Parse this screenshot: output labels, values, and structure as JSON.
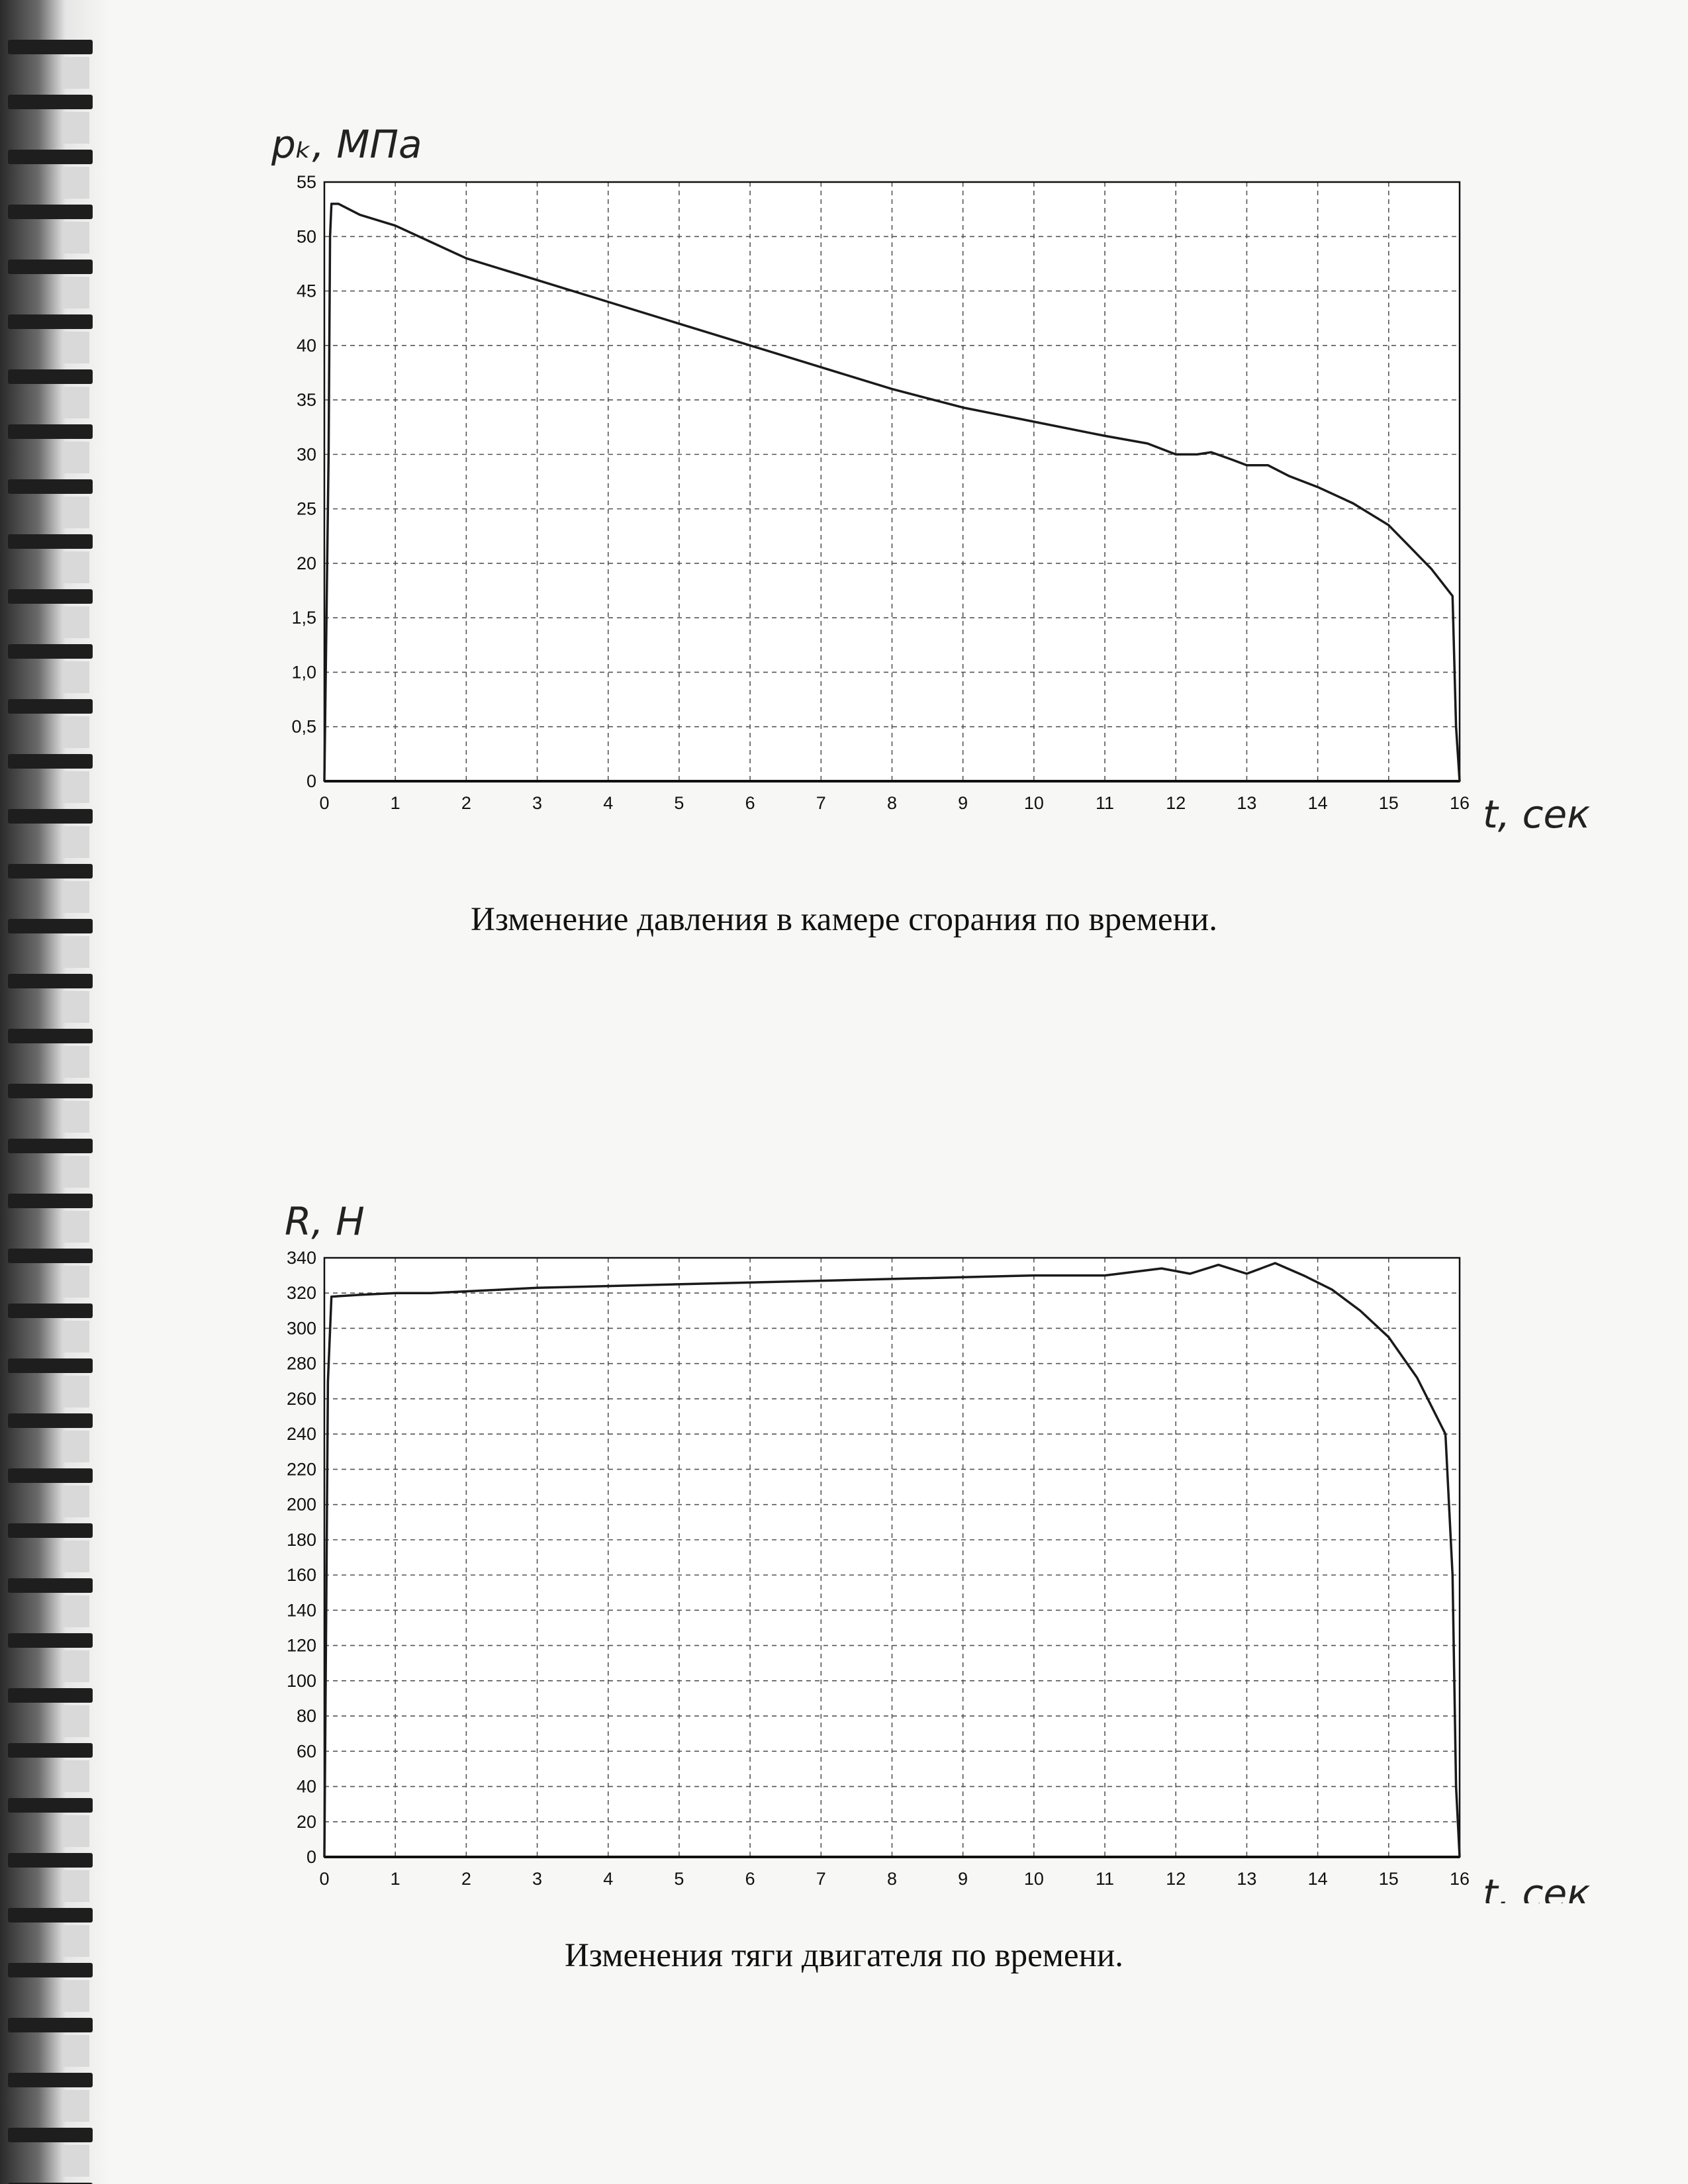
{
  "chart_data": [
    {
      "type": "line",
      "title": "",
      "caption": "Изменение давления в камере сгорания по времени.",
      "xlabel": "t, сек",
      "ylabel": "pₖ, МПа",
      "xlim": [
        0,
        16
      ],
      "ylim": [
        0,
        55
      ],
      "x_ticks": [
        "0",
        "1",
        "2",
        "3",
        "4",
        "5",
        "6",
        "7",
        "8",
        "9",
        "10",
        "11",
        "12",
        "13",
        "14",
        "15",
        "16"
      ],
      "y_ticks": [
        "0",
        "0,5",
        "1,0",
        "1,5",
        "20",
        "25",
        "30",
        "35",
        "40",
        "45",
        "50",
        "55"
      ],
      "grid": true,
      "series": [
        {
          "x": [
            0,
            0.06,
            0.08,
            0.1,
            0.2,
            0.5,
            1.0,
            1.5,
            2.0,
            3.0,
            4.0,
            5.0,
            6.0,
            7.0,
            8.0,
            9.0,
            10.0,
            11.0,
            11.6,
            12.0,
            12.3,
            12.5,
            12.8,
            13.0,
            13.3,
            13.6,
            14.0,
            14.5,
            15.0,
            15.3,
            15.6,
            15.9,
            15.95,
            16.0
          ],
          "y": [
            0,
            30,
            50,
            53,
            53,
            52,
            51,
            49.5,
            48,
            46,
            44,
            42,
            40,
            38,
            36,
            34.3,
            33,
            31.7,
            31,
            30,
            30,
            30.2,
            29.5,
            29,
            29,
            28,
            27,
            25.5,
            23.5,
            21.5,
            19.5,
            17,
            5,
            0
          ]
        }
      ]
    },
    {
      "type": "line",
      "title": "",
      "caption": "Изменения тяги двигателя по времени.",
      "xlabel": "t, сек",
      "ylabel": "R, Н",
      "xlim": [
        0,
        16
      ],
      "ylim": [
        0,
        340
      ],
      "x_ticks": [
        "0",
        "1",
        "2",
        "3",
        "4",
        "5",
        "6",
        "7",
        "8",
        "9",
        "10",
        "11",
        "12",
        "13",
        "14",
        "15",
        "16"
      ],
      "y_ticks": [
        "0",
        "20",
        "40",
        "60",
        "80",
        "100",
        "120",
        "140",
        "160",
        "180",
        "200",
        "220",
        "240",
        "260",
        "280",
        "300",
        "320",
        "340"
      ],
      "grid": true,
      "series": [
        {
          "x": [
            0,
            0.05,
            0.1,
            0.5,
            1.0,
            1.5,
            2.0,
            3.0,
            4.0,
            5.0,
            6.0,
            7.0,
            8.0,
            9.0,
            10.0,
            11.0,
            11.8,
            12.2,
            12.6,
            13.0,
            13.4,
            13.8,
            14.2,
            14.6,
            15.0,
            15.4,
            15.8,
            15.9,
            15.95,
            16.0
          ],
          "y": [
            0,
            270,
            318,
            319,
            320,
            320,
            321,
            323,
            324,
            325,
            326,
            327,
            328,
            329,
            330,
            330,
            334,
            331,
            336,
            331,
            337,
            330,
            322,
            310,
            295,
            272,
            240,
            160,
            40,
            0
          ]
        }
      ]
    }
  ]
}
